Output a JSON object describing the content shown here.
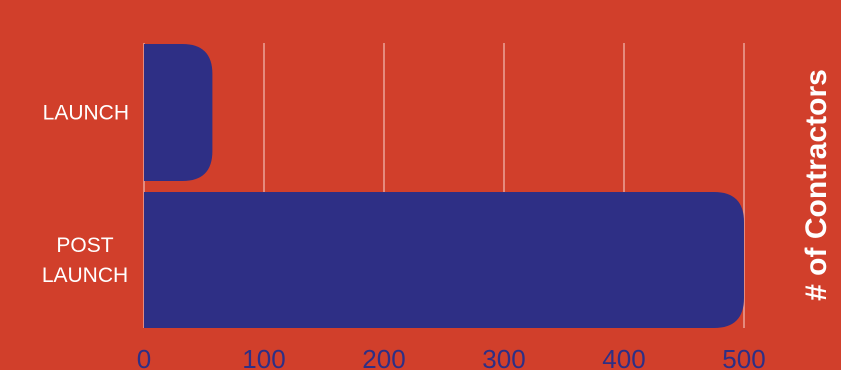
{
  "colors": {
    "background": "#d13f2b",
    "bar": "#2e2f85",
    "grid": "#e58a7d",
    "category_text": "#ffffff",
    "tick_text": "#2e2f85"
  },
  "chart_data": {
    "type": "bar",
    "orientation": "horizontal",
    "categories": [
      [
        "LAUNCH"
      ],
      [
        "POST",
        "LAUNCH"
      ]
    ],
    "values": [
      57,
      500
    ],
    "title": "",
    "xlabel": "",
    "ylabel": "# of Contractors",
    "xlim": [
      0,
      500
    ],
    "ticks": [
      0,
      100,
      200,
      300,
      400,
      500
    ],
    "grid": true
  }
}
